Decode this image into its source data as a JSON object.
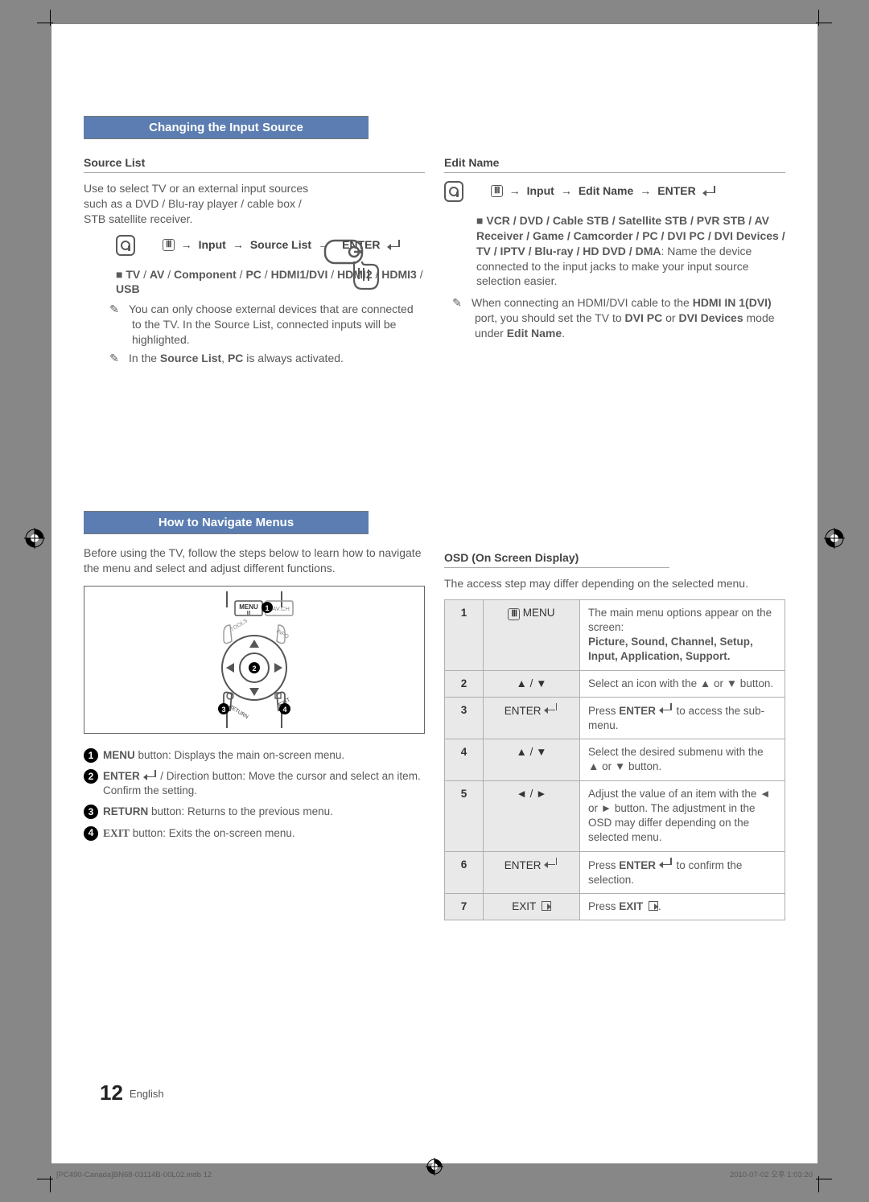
{
  "meta": {
    "page_number": "12",
    "language": "English",
    "doc_foot_left": "[PC490-Canada]BN68-03114B-00L02.indb   12",
    "doc_foot_right": "2010-07-02   오후 1:03:20"
  },
  "colors": {
    "header_bg": "#5b7db1",
    "header_fg": "#ffffff",
    "text": "#595959",
    "table_border": "#aeaeae",
    "table_shade": "#e9e9e9"
  },
  "section1": {
    "title": "Changing the Input Source",
    "source_list": {
      "heading": "Source List",
      "desc": "Use to select TV or an external input sources such as a DVD / Blu-ray player / cable box / STB satellite receiver.",
      "path_1": "MENU",
      "path_2": "Input",
      "path_3": "Source List",
      "path_4": "ENTER",
      "options": "TV / AV / Component / PC / HDMI1/DVI / HDMI2 / HDMI3 / USB",
      "note1": "You can only choose external devices that are connected to the TV. In the Source List, connected inputs will be highlighted.",
      "note2_a": "In the ",
      "note2_b": "Source List",
      "note2_c": ", ",
      "note2_d": "PC",
      "note2_e": " is always activated."
    },
    "edit_name": {
      "heading": "Edit Name",
      "path_1": "MENU",
      "path_2": "Input",
      "path_3": "Edit Name",
      "path_4": "ENTER",
      "options": "VCR / DVD / Cable STB / Satellite STB / PVR STB / AV Receiver / Game / Camcorder / PC / DVI PC / DVI Devices / TV / IPTV / Blu-ray / HD DVD / DMA",
      "desc": ": Name the device connected to the input jacks to make your input source selection easier.",
      "note_a": "When connecting an HDMI/DVI cable to the ",
      "note_b": "HDMI IN 1(DVI)",
      "note_c": " port, you should set the TV to ",
      "note_d": "DVI PC",
      "note_e": " or ",
      "note_f": "DVI Devices",
      "note_g": " mode under ",
      "note_h": "Edit Name",
      "note_i": "."
    }
  },
  "section2": {
    "title": "How to Navigate Menus",
    "intro": "Before using the TV, follow the steps below to learn how to navigate the menu and select and adjust different functions.",
    "legend": {
      "i1_a": "MENU",
      "i1_b": " button: Displays the main on-screen menu.",
      "i2_a": "ENTER",
      "i2_b": " / Direction button: Move the cursor and select an item. Confirm the setting.",
      "i3_a": "RETURN",
      "i3_b": " button: Returns to the previous menu.",
      "i4_a": "EXIT",
      "i4_b": " button: Exits the on-screen menu."
    },
    "osd": {
      "heading": "OSD (On Screen Display)",
      "intro": "The access step may differ depending on the selected menu.",
      "rows": [
        {
          "step": "1",
          "sym_type": "menu",
          "desc": "The main menu options appear on the screen:",
          "desc2": "Picture, Sound, Channel, Setup, Input, Application, Support."
        },
        {
          "step": "2",
          "sym_type": "updown",
          "desc": "Select an icon with the ▲ or ▼ button."
        },
        {
          "step": "3",
          "sym_type": "enter",
          "desc_a": "Press ",
          "desc_b": "ENTER",
          "desc_c": " to access the sub-menu."
        },
        {
          "step": "4",
          "sym_type": "updown",
          "desc": "Select the desired submenu with the ▲ or ▼ button."
        },
        {
          "step": "5",
          "sym_type": "leftright",
          "desc": "Adjust the value of an item with the ◄ or ► button. The adjustment in the OSD may differ depending on the selected menu."
        },
        {
          "step": "6",
          "sym_type": "enter",
          "desc_a": "Press ",
          "desc_b": "ENTER",
          "desc_c": " to confirm the selection."
        },
        {
          "step": "7",
          "sym_type": "exit",
          "desc_a": "Press ",
          "desc_b": "EXIT",
          "desc_c": "."
        }
      ]
    }
  }
}
